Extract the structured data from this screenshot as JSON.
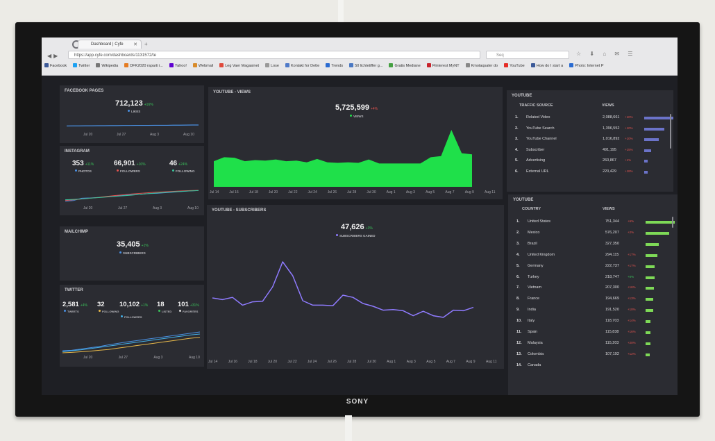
{
  "tv": {
    "brand": "SONY"
  },
  "browser": {
    "tab_title": "Dashboard | Cyfe",
    "url": "https://app.cyfe.com/dashboards/1131572/te",
    "search": "Seq",
    "bookmarks": [
      {
        "label": "Facebook",
        "color": "#3b5998"
      },
      {
        "label": "Twitter",
        "color": "#1da1f2"
      },
      {
        "label": "Wikipedia",
        "color": "#777777"
      },
      {
        "label": "DFK2020 raparti i...",
        "color": "#e57c22"
      },
      {
        "label": "Yahoo!",
        "color": "#5f01d1"
      },
      {
        "label": "Webmail",
        "color": "#d88b2b"
      },
      {
        "label": "Leg Vaer Magasinet",
        "color": "#e04a3c"
      },
      {
        "label": "Lose",
        "color": "#999999"
      },
      {
        "label": "Kontakt for Dette",
        "color": "#4f7ac9"
      },
      {
        "label": "Trends",
        "color": "#2a6bd1"
      },
      {
        "label": "50 lichtetiffer g...",
        "color": "#4a78c2"
      },
      {
        "label": "Gratis Mediane",
        "color": "#45a042"
      },
      {
        "label": "Flinterest MyNT",
        "color": "#c8232c"
      },
      {
        "label": "Kmotaqsaler do",
        "color": "#888888"
      },
      {
        "label": "YouTube",
        "color": "#e52d27"
      },
      {
        "label": "How do I start a",
        "color": "#3b5998"
      },
      {
        "label": "Photo: Internet P",
        "color": "#2a6bd1"
      }
    ]
  },
  "facebook": {
    "title": "FACEBOOK PAGES",
    "value": "712,123",
    "pct": "+16%",
    "legend": "LIKES",
    "x_labels": [
      "Jul 20",
      "Jul 27",
      "Aug 3",
      "Aug 10"
    ]
  },
  "instagram": {
    "title": "INSTAGRAM",
    "stats": [
      {
        "value": "353",
        "pct": "+11%",
        "label": "PHOTOS",
        "color": "#4a90e2"
      },
      {
        "value": "66,901",
        "pct": "+16%",
        "label": "FOLLOWERS",
        "color": "#e0534f"
      },
      {
        "value": "46",
        "pct": "+24%",
        "label": "FOLLOWING",
        "color": "#39c29a"
      }
    ],
    "x_labels": [
      "Jul 20",
      "Jul 27",
      "Aug 3",
      "Aug 10"
    ]
  },
  "mailchimp": {
    "title": "MAILCHIMP",
    "value": "35,405",
    "pct": "+1%",
    "legend": "SUBSCRIBERS"
  },
  "twitter": {
    "title": "TWITTER",
    "stats": [
      {
        "value": "2,581",
        "pct": "+4%",
        "label": "TWEETS",
        "color": "#4a90e2"
      },
      {
        "value": "32",
        "pct": "",
        "label": "FOLLOWING",
        "color": "#e8b94a"
      },
      {
        "value": "10,102",
        "pct": "+1%",
        "label": "FOLLOWERS",
        "color": "#43b0e8"
      },
      {
        "value": "18",
        "pct": "",
        "label": "LISTED",
        "color": "#3ac25a"
      },
      {
        "value": "101",
        "pct": "+31%",
        "label": "FAVORITES",
        "color": "#d8d8d8"
      }
    ],
    "x_labels": [
      "Jul 20",
      "Jul 27",
      "Aug 3",
      "Aug 10"
    ]
  },
  "youtube_views": {
    "title": "YOUTUBE - VIEWS",
    "value": "5,725,599",
    "pct": "+4%",
    "legend": "VIEWS",
    "x_labels": [
      "Jul 14",
      "Jul 16",
      "Jul 18",
      "Jul 20",
      "Jul 22",
      "Jul 24",
      "Jul 26",
      "Jul 28",
      "Jul 30",
      "Aug 1",
      "Aug 3",
      "Aug 5",
      "Aug 7",
      "Aug 9",
      "Aug 11"
    ]
  },
  "youtube_subs": {
    "title": "YOUTUBE - SUBSCRIBERS",
    "value": "47,626",
    "pct": "+3%",
    "legend": "SUBSCRIBERS GAINED",
    "x_labels": [
      "Jul 14",
      "Jul 16",
      "Jul 18",
      "Jul 20",
      "Jul 22",
      "Jul 24",
      "Jul 26",
      "Jul 28",
      "Jul 30",
      "Aug 1",
      "Aug 3",
      "Aug 5",
      "Aug 7",
      "Aug 9",
      "Aug 11"
    ]
  },
  "traffic": {
    "title": "YOUTUBE",
    "col1": "TRAFFIC SOURCE",
    "col2": "VIEWS",
    "bar_color": "#6b73c9",
    "rows": [
      {
        "n": "1.",
        "name": "Related Video",
        "views": "2,088,661",
        "pct": "+10%",
        "share": 1.0
      },
      {
        "n": "2.",
        "name": "YouTube Search",
        "views": "1,396,552",
        "pct": "+10%",
        "share": 0.68
      },
      {
        "n": "3.",
        "name": "YouTube Channel",
        "views": "1,016,892",
        "pct": "+10%",
        "share": 0.5
      },
      {
        "n": "4.",
        "name": "Subscriber",
        "views": "491,195",
        "pct": "+15%",
        "share": 0.24
      },
      {
        "n": "5.",
        "name": "Advertising",
        "views": "260,867",
        "pct": "+1%",
        "share": 0.13
      },
      {
        "n": "6.",
        "name": "External URL",
        "views": "220,429",
        "pct": "+18%",
        "share": 0.11
      }
    ]
  },
  "countries": {
    "title": "YOUTUBE",
    "col1": "COUNTRY",
    "col2": "VIEWS",
    "bar_color": "#7ed957",
    "rows": [
      {
        "n": "1.",
        "name": "United States",
        "views": "751,344",
        "pct": "+6%",
        "share": 1.0
      },
      {
        "n": "2.",
        "name": "Mexico",
        "views": "576,207",
        "pct": "+2%",
        "share": 0.77
      },
      {
        "n": "3.",
        "name": "Brazil",
        "views": "327,350",
        "pct": "",
        "share": 0.44
      },
      {
        "n": "4.",
        "name": "United Kingdom",
        "views": "294,115",
        "pct": "+17%",
        "share": 0.39
      },
      {
        "n": "5.",
        "name": "Germany",
        "views": "222,737",
        "pct": "+17%",
        "share": 0.3
      },
      {
        "n": "6.",
        "name": "Turkey",
        "views": "218,747",
        "pct": "+0%",
        "share": 0.29
      },
      {
        "n": "7.",
        "name": "Vietnam",
        "views": "207,300",
        "pct": "+16%",
        "share": 0.28
      },
      {
        "n": "8.",
        "name": "France",
        "views": "194,669",
        "pct": "+13%",
        "share": 0.26
      },
      {
        "n": "9.",
        "name": "India",
        "views": "191,520",
        "pct": "+10%",
        "share": 0.25
      },
      {
        "n": "10.",
        "name": "Italy",
        "views": "118,703",
        "pct": "+14%",
        "share": 0.16
      },
      {
        "n": "11.",
        "name": "Spain",
        "views": "115,838",
        "pct": "+16%",
        "share": 0.15
      },
      {
        "n": "12.",
        "name": "Malaysia",
        "views": "115,203",
        "pct": "+20%",
        "share": 0.15
      },
      {
        "n": "13.",
        "name": "Colombia",
        "views": "107,192",
        "pct": "+12%",
        "share": 0.14
      },
      {
        "n": "14.",
        "name": "Canada",
        "views": "",
        "pct": "",
        "share": 0
      }
    ]
  },
  "chart_data": [
    {
      "type": "area",
      "title": "YOUTUBE - VIEWS",
      "series": [
        {
          "name": "VIEWS",
          "values": [
            0.45,
            0.52,
            0.51,
            0.45,
            0.47,
            0.46,
            0.48,
            0.45,
            0.46,
            0.43,
            0.49,
            0.43,
            0.42,
            0.43,
            0.42,
            0.48,
            0.41,
            0.41,
            0.41,
            0.41,
            0.41,
            0.52,
            0.54,
            1.0,
            0.59,
            0.57
          ]
        }
      ],
      "color": "#1fe04a"
    },
    {
      "type": "line",
      "title": "YOUTUBE - SUBSCRIBERS",
      "series": [
        {
          "name": "SUBSCRIBERS GAINED",
          "values": [
            0.35,
            0.32,
            0.36,
            0.22,
            0.28,
            0.29,
            0.55,
            1.0,
            0.75,
            0.3,
            0.22,
            0.22,
            0.21,
            0.4,
            0.36,
            0.25,
            0.2,
            0.13,
            0.14,
            0.12,
            0.03,
            0.11,
            0.03,
            0.0,
            0.13,
            0.12,
            0.18
          ]
        }
      ],
      "color": "#8f7bff"
    },
    {
      "type": "line",
      "title": "FACEBOOK PAGES",
      "series": [
        {
          "name": "LIKES",
          "values": [
            0.4,
            0.41,
            0.41,
            0.42,
            0.42,
            0.43,
            0.43,
            0.44,
            0.44,
            0.45,
            0.45,
            0.46,
            0.46,
            0.46,
            0.47,
            0.47,
            0.47,
            0.48,
            0.48,
            0.49,
            0.5,
            0.5
          ]
        }
      ],
      "color": "#4a90e2"
    },
    {
      "type": "line",
      "title": "INSTAGRAM",
      "series": [
        {
          "name": "PHOTOS",
          "values": [
            0.1,
            0.15,
            0.3,
            0.32,
            0.35,
            0.4,
            0.44,
            0.5,
            0.52,
            0.55,
            0.6,
            0.62,
            0.66,
            0.7,
            0.74,
            0.78,
            0.8
          ]
        },
        {
          "name": "FOLLOWERS",
          "values": [
            0.15,
            0.2,
            0.25,
            0.3,
            0.35,
            0.42,
            0.48,
            0.52,
            0.58,
            0.62,
            0.66,
            0.7,
            0.72,
            0.75,
            0.78,
            0.8,
            0.82
          ]
        },
        {
          "name": "FOLLOWING",
          "values": [
            0.2,
            0.22,
            0.25,
            0.3,
            0.34,
            0.38,
            0.42,
            0.46,
            0.5,
            0.55,
            0.6,
            0.64,
            0.68,
            0.72,
            0.75,
            0.78,
            0.8
          ]
        }
      ]
    },
    {
      "type": "line",
      "title": "TWITTER",
      "series": [
        {
          "name": "TWEETS",
          "values": [
            0.1,
            0.12,
            0.18,
            0.24,
            0.3,
            0.38,
            0.45,
            0.52,
            0.58,
            0.64,
            0.7,
            0.76,
            0.82,
            0.88,
            0.94,
            1.0
          ]
        },
        {
          "name": "FOLLOWERS",
          "values": [
            0.05,
            0.1,
            0.14,
            0.2,
            0.26,
            0.32,
            0.38,
            0.44,
            0.5,
            0.56,
            0.62,
            0.68,
            0.74,
            0.8,
            0.86,
            0.9
          ]
        },
        {
          "name": "FOLLOWING",
          "values": [
            0.0,
            0.02,
            0.05,
            0.08,
            0.12,
            0.16,
            0.22,
            0.28,
            0.34,
            0.4,
            0.46,
            0.52,
            0.58,
            0.64,
            0.7,
            0.74
          ]
        }
      ]
    }
  ]
}
